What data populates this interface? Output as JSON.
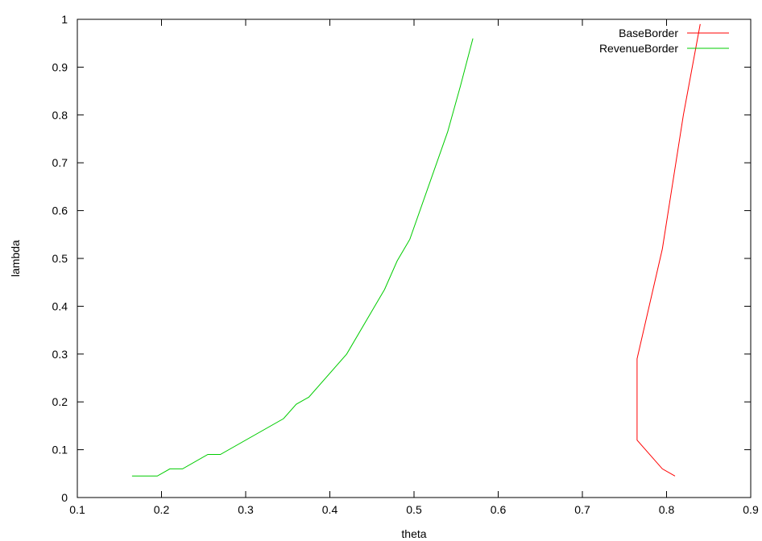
{
  "chart_data": {
    "type": "line",
    "title": "",
    "xlabel": "theta",
    "ylabel": "lambda",
    "xlim": [
      0.1,
      0.9
    ],
    "ylim": [
      0,
      1
    ],
    "xticks": [
      0.1,
      0.2,
      0.3,
      0.4,
      0.5,
      0.6,
      0.7,
      0.8,
      0.9
    ],
    "xtick_labels": [
      "0.1",
      "0.2",
      "0.3",
      "0.4",
      "0.5",
      "0.6",
      "0.7",
      "0.8",
      "0.9"
    ],
    "yticks": [
      0,
      0.1,
      0.2,
      0.3,
      0.4,
      0.5,
      0.6,
      0.7,
      0.8,
      0.9,
      1
    ],
    "ytick_labels": [
      "0",
      "0.1",
      "0.2",
      "0.3",
      "0.4",
      "0.5",
      "0.6",
      "0.7",
      "0.8",
      "0.9",
      "1"
    ],
    "grid": false,
    "legend_position": "top-right",
    "series": [
      {
        "name": "BaseBorder",
        "color": "#ff0000",
        "points": [
          [
            0.81,
            0.045
          ],
          [
            0.795,
            0.06
          ],
          [
            0.765,
            0.12
          ],
          [
            0.765,
            0.29
          ],
          [
            0.795,
            0.52
          ],
          [
            0.82,
            0.8
          ],
          [
            0.84,
            0.99
          ]
        ]
      },
      {
        "name": "RevenueBorder",
        "color": "#00cc00",
        "points": [
          [
            0.165,
            0.045
          ],
          [
            0.195,
            0.045
          ],
          [
            0.21,
            0.06
          ],
          [
            0.225,
            0.06
          ],
          [
            0.255,
            0.09
          ],
          [
            0.27,
            0.09
          ],
          [
            0.345,
            0.165
          ],
          [
            0.36,
            0.195
          ],
          [
            0.375,
            0.21
          ],
          [
            0.42,
            0.3
          ],
          [
            0.465,
            0.435
          ],
          [
            0.48,
            0.495
          ],
          [
            0.495,
            0.54
          ],
          [
            0.54,
            0.765
          ],
          [
            0.555,
            0.86
          ],
          [
            0.57,
            0.96
          ]
        ]
      }
    ]
  }
}
